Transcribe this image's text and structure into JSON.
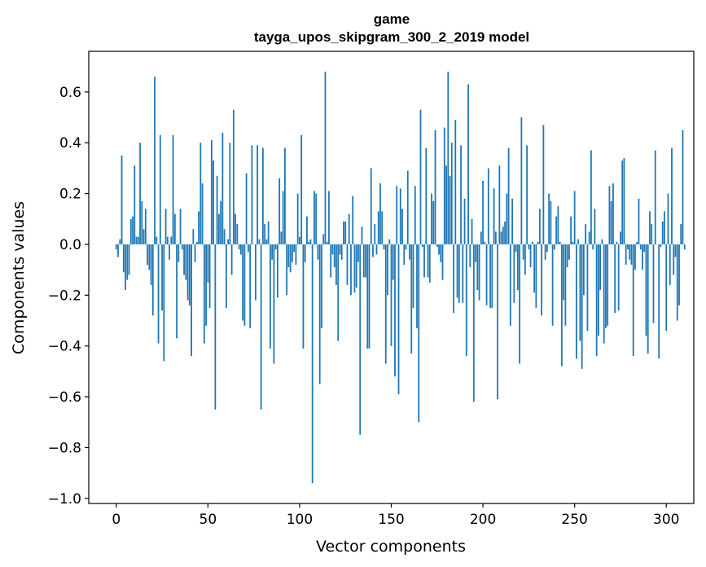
{
  "chart_data": {
    "type": "bar",
    "title_line1": "game",
    "title_line2": "tayga_upos_skipgram_300_2_2019 model",
    "xlabel": "Vector components",
    "ylabel": "Components values",
    "xlim": [
      -15,
      315
    ],
    "ylim": [
      -1.02,
      0.76
    ],
    "xticks": [
      0,
      50,
      100,
      150,
      200,
      250,
      300
    ],
    "xtick_labels": [
      "0",
      "50",
      "100",
      "150",
      "200",
      "250",
      "300"
    ],
    "yticks": [
      -1.0,
      -0.8,
      -0.6,
      -0.4,
      -0.2,
      0.0,
      0.2,
      0.4,
      0.6
    ],
    "ytick_labels": [
      "−1.0",
      "−0.8",
      "−0.6",
      "−0.4",
      "−0.2",
      "0.0",
      "0.2",
      "0.4",
      "0.6"
    ],
    "bar_color": "#1f77b4",
    "grid": false,
    "values": [
      -0.02,
      -0.05,
      0.02,
      0.35,
      -0.11,
      -0.18,
      -0.14,
      -0.12,
      0.1,
      0.11,
      0.31,
      0.03,
      0.03,
      0.4,
      0.17,
      0.06,
      0.14,
      -0.08,
      -0.1,
      -0.16,
      -0.28,
      0.66,
      0.03,
      -0.39,
      0.43,
      -0.26,
      -0.46,
      0.14,
      0.03,
      -0.06,
      0.03,
      0.43,
      0.12,
      -0.37,
      -0.07,
      0.14,
      -0.02,
      -0.12,
      -0.14,
      -0.22,
      -0.24,
      -0.44,
      0.06,
      -0.07,
      0.01,
      0.13,
      0.4,
      0.24,
      -0.39,
      -0.32,
      -0.15,
      -0.25,
      0.41,
      0.33,
      -0.65,
      0.27,
      0.12,
      0.17,
      0.44,
      0.06,
      -0.25,
      0.02,
      0.4,
      -0.12,
      0.53,
      0.12,
      0.08,
      -0.02,
      -0.04,
      -0.3,
      -0.32,
      0.28,
      -0.03,
      -0.33,
      0.39,
      0.0,
      -0.22,
      0.39,
      0.02,
      -0.65,
      0.38,
      0.08,
      0.02,
      0.09,
      -0.41,
      -0.06,
      -0.47,
      -0.02,
      -0.21,
      0.26,
      0.05,
      0.21,
      0.38,
      -0.2,
      -0.09,
      -0.11,
      -0.07,
      -0.03,
      -0.08,
      0.2,
      0.03,
      0.43,
      -0.41,
      -0.07,
      0.11,
      0.01,
      0.02,
      -0.94,
      0.21,
      0.2,
      -0.06,
      -0.55,
      -0.33,
      0.04,
      0.68,
      0.01,
      0.21,
      -0.13,
      -0.04,
      -0.09,
      -0.16,
      -0.38,
      -0.04,
      -0.06,
      0.09,
      0.09,
      -0.16,
      0.12,
      -0.2,
      0.19,
      -0.19,
      -0.17,
      -0.07,
      -0.75,
      0.07,
      -0.13,
      -0.13,
      -0.41,
      -0.41,
      0.3,
      -0.05,
      0.08,
      -0.04,
      0.13,
      0.24,
      0.13,
      -0.02,
      -0.47,
      -0.2,
      0.02,
      -0.4,
      -0.14,
      -0.52,
      0.23,
      -0.59,
      0.22,
      0.14,
      -0.08,
      -0.02,
      0.29,
      -0.06,
      -0.43,
      -0.25,
      0.23,
      -0.33,
      -0.7,
      0.53,
      -0.01,
      -0.13,
      0.38,
      -0.13,
      -0.15,
      0.2,
      0.17,
      0.45,
      -0.01,
      -0.04,
      -0.07,
      -0.14,
      0.46,
      0.31,
      0.68,
      0.27,
      0.4,
      -0.27,
      0.49,
      -0.21,
      -0.23,
      0.39,
      -0.23,
      0.18,
      -0.44,
      0.63,
      -0.09,
      0.1,
      -0.62,
      -0.07,
      -0.18,
      -0.22,
      0.05,
      0.25,
      0.01,
      -0.24,
      0.3,
      -0.25,
      -0.25,
      0.22,
      0.05,
      -0.61,
      0.31,
      0.05,
      0.07,
      0.09,
      0.2,
      0.38,
      -0.32,
      0.18,
      -0.23,
      -0.03,
      -0.18,
      -0.47,
      0.5,
      -0.06,
      -0.12,
      0.39,
      -0.02,
      -0.09,
      0.01,
      -0.19,
      -0.25,
      0.01,
      0.14,
      -0.28,
      0.47,
      -0.06,
      -0.03,
      0.2,
      0.17,
      -0.32,
      -0.02,
      0.11,
      0.15,
      0.01,
      -0.48,
      -0.22,
      -0.32,
      -0.09,
      -0.06,
      0.11,
      0.01,
      0.21,
      -0.45,
      0.02,
      -0.38,
      -0.49,
      -0.2,
      0.08,
      -0.34,
      0.05,
      0.37,
      -0.02,
      0.14,
      -0.44,
      -0.36,
      -0.18,
      0.02,
      -0.39,
      -0.33,
      -0.32,
      0.23,
      0.17,
      0.24,
      -0.27,
      0.01,
      -0.26,
      0.05,
      0.33,
      0.34,
      -0.08,
      -0.02,
      -0.06,
      -0.08,
      -0.44,
      -0.1,
      0.01,
      0.18,
      -0.02,
      -0.1,
      -0.03,
      -0.36,
      -0.43,
      0.13,
      0.08,
      -0.31,
      0.37,
      0.0,
      -0.45,
      -0.01,
      0.09,
      0.13,
      -0.34,
      0.2,
      -0.16,
      0.38,
      -0.12,
      -0.05,
      -0.3,
      -0.24,
      0.08,
      0.45,
      -0.02
    ]
  }
}
